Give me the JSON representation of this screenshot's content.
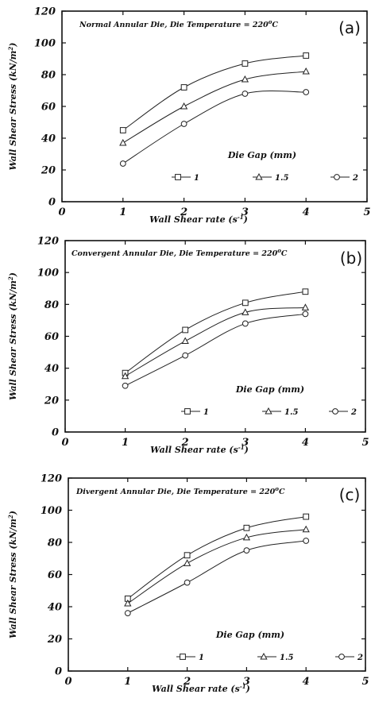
{
  "chart_data": [
    {
      "type": "line",
      "panel_label": "(a)",
      "title": "Normal Annular Die, Die Temperature = 220",
      "title_sup": "o",
      "title_unit": "C",
      "xlabel": "Wall Shear rate (s",
      "xlabel_sup": "-1",
      "xlabel_end": ")",
      "ylabel": "Wall Shear Stress (kN/m",
      "ylabel_sup": "2",
      "ylabel_end": ")",
      "xlim": [
        0,
        5
      ],
      "ylim": [
        0,
        120
      ],
      "xticks": [
        0,
        1,
        2,
        3,
        4,
        5
      ],
      "yticks": [
        0,
        20,
        40,
        60,
        80,
        100,
        120
      ],
      "legend_title": "Die Gap  (mm)",
      "x": [
        1,
        2,
        3,
        4
      ],
      "series": [
        {
          "name": "1",
          "marker": "square",
          "values": [
            45,
            72,
            87,
            92
          ]
        },
        {
          "name": "1.5",
          "marker": "triangle",
          "values": [
            37,
            60,
            77,
            82
          ]
        },
        {
          "name": "2",
          "marker": "circle",
          "values": [
            24,
            49,
            68,
            69
          ]
        }
      ]
    },
    {
      "type": "line",
      "panel_label": "(b)",
      "title": "Convergent Annular Die, Die Temperature = 220",
      "title_sup": "o",
      "title_unit": "C",
      "xlabel": "Wall Shear rate (s",
      "xlabel_sup": "-1",
      "xlabel_end": ")",
      "ylabel": "Wall Shear Stress (kN/m",
      "ylabel_sup": "2",
      "ylabel_end": ")",
      "xlim": [
        0,
        5
      ],
      "ylim": [
        0,
        120
      ],
      "xticks": [
        0,
        1,
        2,
        3,
        4,
        5
      ],
      "yticks": [
        0,
        20,
        40,
        60,
        80,
        100,
        120
      ],
      "legend_title": "Die Gap  (mm)",
      "x": [
        1,
        2,
        3,
        4
      ],
      "series": [
        {
          "name": "1",
          "marker": "square",
          "values": [
            37,
            64,
            81,
            88
          ]
        },
        {
          "name": "1.5",
          "marker": "triangle",
          "values": [
            35,
            57,
            75,
            78
          ]
        },
        {
          "name": "2",
          "marker": "circle",
          "values": [
            29,
            48,
            68,
            74
          ]
        }
      ]
    },
    {
      "type": "line",
      "panel_label": "(c)",
      "title": "Divergent Annular Die, Die Temperature = 220",
      "title_sup": "o",
      "title_unit": "C",
      "xlabel": "Wall Shear rate (s",
      "xlabel_sup": "-1",
      "xlabel_end": ")",
      "ylabel": "Wall Shear Stress (kN/m",
      "ylabel_sup": "2",
      "ylabel_end": ")",
      "xlim": [
        0,
        5
      ],
      "ylim": [
        0,
        120
      ],
      "xticks": [
        0,
        1,
        2,
        3,
        4,
        5
      ],
      "yticks": [
        0,
        20,
        40,
        60,
        80,
        100,
        120
      ],
      "legend_title": "Die Gap  (mm)",
      "x": [
        1,
        2,
        3,
        4
      ],
      "series": [
        {
          "name": "1",
          "marker": "square",
          "values": [
            45,
            72,
            89,
            96
          ]
        },
        {
          "name": "1.5",
          "marker": "triangle",
          "values": [
            42,
            67,
            83,
            88
          ]
        },
        {
          "name": "2",
          "marker": "circle",
          "values": [
            36,
            55,
            75,
            81
          ]
        }
      ]
    }
  ]
}
